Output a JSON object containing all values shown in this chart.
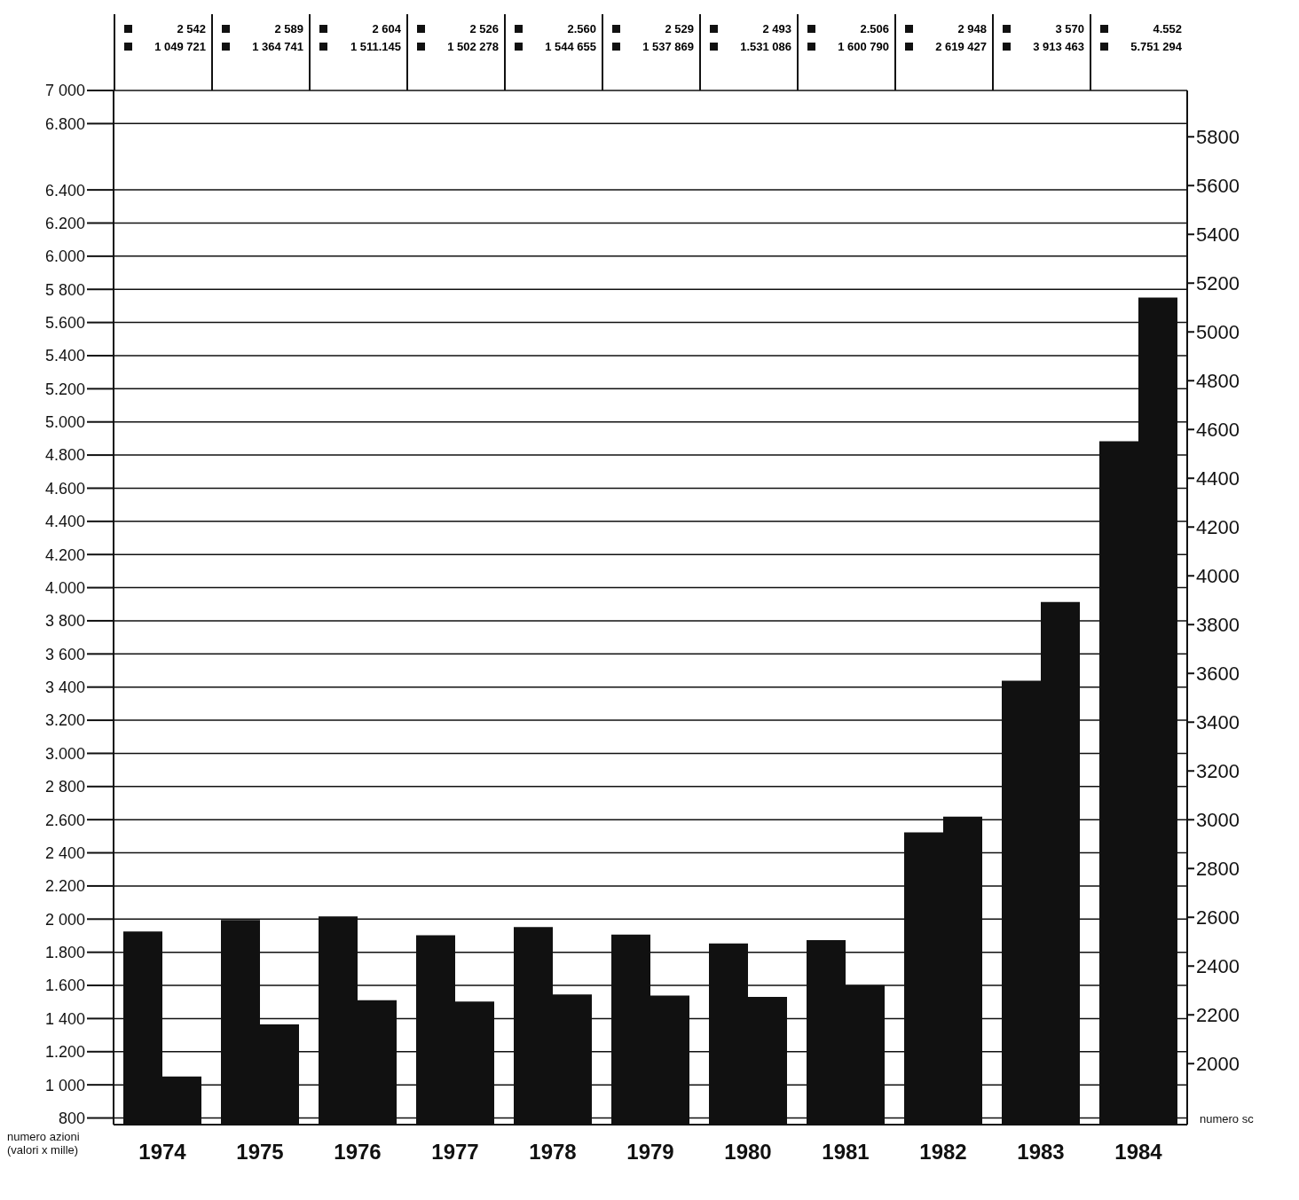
{
  "chart_data": {
    "type": "bar",
    "ylabel": "numero azioni (valori x mille)",
    "y2label": "numero sc",
    "categories": [
      "1974",
      "1975",
      "1976",
      "1977",
      "1978",
      "1979",
      "1980",
      "1981",
      "1982",
      "1983",
      "1984"
    ],
    "series": [
      {
        "color": "#111111",
        "axis": "y2",
        "values": [
          2542,
          2589,
          2604,
          2526,
          2560,
          2529,
          2493,
          2506,
          2948,
          3570,
          4552
        ],
        "value_labels": [
          "2 542",
          "2 589",
          "2 604",
          "2 526",
          "2.560",
          "2 529",
          "2 493",
          "2.506",
          "2 948",
          "3 570",
          "4.552"
        ]
      },
      {
        "color": "#111111",
        "axis": "y",
        "values": [
          1050,
          1365,
          1511,
          1502,
          1545,
          1538,
          1531,
          1601,
          2619,
          3913,
          5751
        ]
      }
    ],
    "annotations": [
      "1 049 721",
      "1 364 741",
      "1 511.145",
      "1 502 278",
      "1 544 655",
      "1 537 869",
      "1.531 086",
      "1 600 790",
      "2 619 427",
      "3 913 463",
      "5.751 294"
    ],
    "ylim": [
      760,
      7000
    ],
    "yticks": [
      {
        "value": 800,
        "label": "800"
      },
      {
        "value": 1000,
        "label": "1 000"
      },
      {
        "value": 1200,
        "label": "1.200"
      },
      {
        "value": 1400,
        "label": "1 400"
      },
      {
        "value": 1600,
        "label": "1.600"
      },
      {
        "value": 1800,
        "label": "1.800"
      },
      {
        "value": 2000,
        "label": "2 000"
      },
      {
        "value": 2200,
        "label": "2.200"
      },
      {
        "value": 2400,
        "label": "2 400"
      },
      {
        "value": 2600,
        "label": "2.600"
      },
      {
        "value": 2800,
        "label": "2 800"
      },
      {
        "value": 3000,
        "label": "3.000"
      },
      {
        "value": 3200,
        "label": "3.200"
      },
      {
        "value": 3400,
        "label": "3 400"
      },
      {
        "value": 3600,
        "label": "3 600"
      },
      {
        "value": 3800,
        "label": "3 800"
      },
      {
        "value": 4000,
        "label": "4.000"
      },
      {
        "value": 4200,
        "label": "4.200"
      },
      {
        "value": 4400,
        "label": "4.400"
      },
      {
        "value": 4600,
        "label": "4.600"
      },
      {
        "value": 4800,
        "label": "4.800"
      },
      {
        "value": 5000,
        "label": "5.000"
      },
      {
        "value": 5200,
        "label": "5.200"
      },
      {
        "value": 5400,
        "label": "5.400"
      },
      {
        "value": 5600,
        "label": "5.600"
      },
      {
        "value": 5800,
        "label": "5 800"
      },
      {
        "value": 6000,
        "label": "6.000"
      },
      {
        "value": 6200,
        "label": "6.200"
      },
      {
        "value": 6400,
        "label": "6.400"
      },
      {
        "value": 6800,
        "label": "6.800"
      },
      {
        "value": 7000,
        "label": "7 000"
      }
    ],
    "y2lim": [
      1750,
      5990
    ],
    "y2ticks": [
      2000,
      2200,
      2400,
      2600,
      2800,
      3000,
      3200,
      3400,
      3600,
      3800,
      4000,
      4200,
      4400,
      4600,
      4800,
      5000,
      5200,
      5400,
      5600,
      5800
    ],
    "grid": "y",
    "legend": false
  }
}
